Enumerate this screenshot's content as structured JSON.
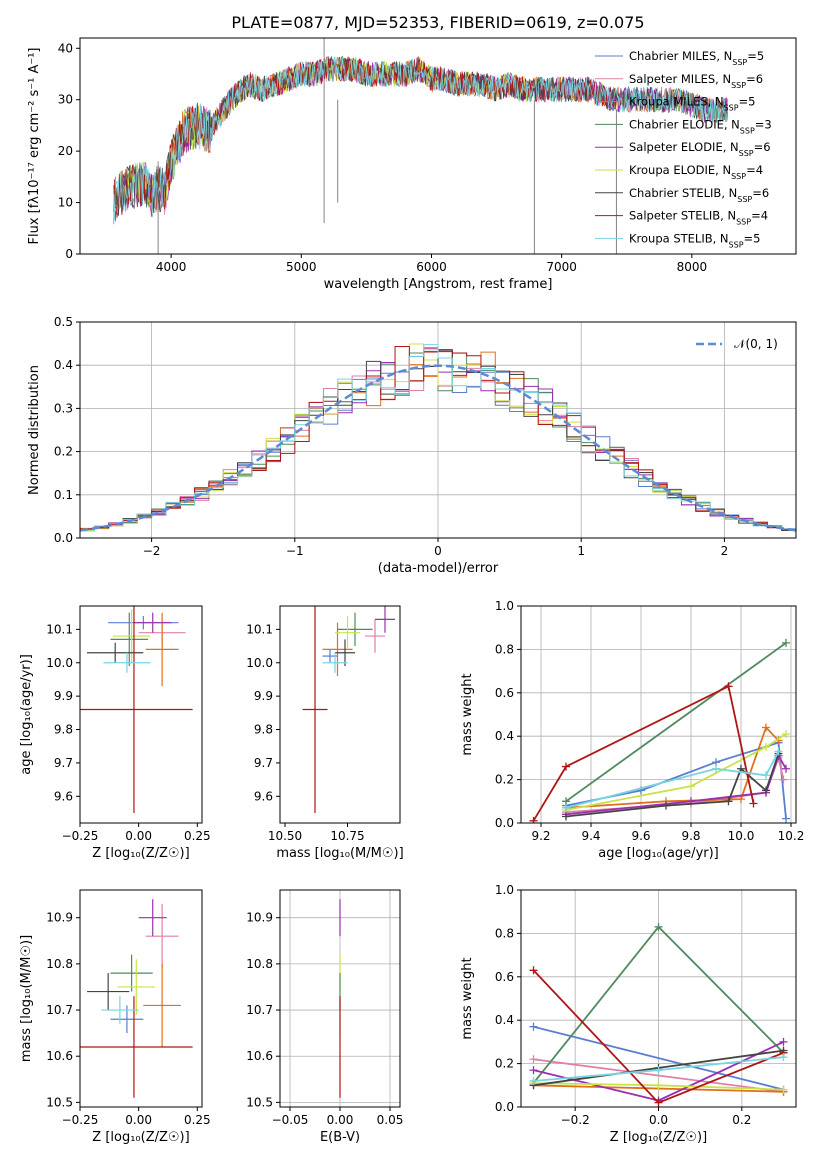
{
  "figure_title": "PLATE=0877, MJD=52353, FIBERID=0619, z=0.075",
  "models": [
    {
      "name": "Chabrier MILES",
      "n_ssp": "5",
      "color": "#5b7fcf"
    },
    {
      "name": "Salpeter MILES",
      "n_ssp": "6",
      "color": "#e07fa8"
    },
    {
      "name": "Kroupa MILES",
      "n_ssp": "5",
      "color": "#e0711c"
    },
    {
      "name": "Chabrier ELODIE",
      "n_ssp": "3",
      "color": "#4f8a5e"
    },
    {
      "name": "Salpeter ELODIE",
      "n_ssp": "6",
      "color": "#9b2fb0"
    },
    {
      "name": "Kroupa ELODIE",
      "n_ssp": "4",
      "color": "#c8e34a"
    },
    {
      "name": "Chabrier STELIB",
      "n_ssp": "6",
      "color": "#444444"
    },
    {
      "name": "Salpeter STELIB",
      "n_ssp": "4",
      "color": "#b01515"
    },
    {
      "name": "Kroupa STELIB",
      "n_ssp": "5",
      "color": "#77d4e0"
    }
  ],
  "chart_data": [
    {
      "id": "spectrum",
      "type": "line",
      "xlabel": "wavelength [Angstrom, rest frame]",
      "ylabel": "Flux [fλ10⁻¹⁷ erg cm⁻² s⁻¹ A⁻¹]",
      "xlim": [
        3300,
        8800
      ],
      "ylim": [
        0,
        42
      ],
      "xticks": [
        4000,
        5000,
        6000,
        7000,
        8000
      ],
      "yticks": [
        0,
        10,
        20,
        30,
        40
      ],
      "x": [
        3550,
        3620,
        3700,
        3800,
        3850,
        3900,
        3950,
        4000,
        4100,
        4200,
        4300,
        4400,
        4500,
        4600,
        4700,
        4800,
        4900,
        5000,
        5100,
        5200,
        5300,
        5400,
        5500,
        5600,
        5700,
        5800,
        5900,
        6000,
        6100,
        6200,
        6300,
        6400,
        6500,
        6600,
        6700,
        6800,
        6900,
        7000,
        7100,
        7200,
        7300,
        7400,
        7500,
        7600,
        7700,
        7800,
        7900,
        8000,
        8100,
        8200,
        8300
      ],
      "y": [
        10,
        12,
        13,
        14,
        11,
        13,
        12,
        18,
        24,
        25,
        24,
        28,
        31,
        33,
        32,
        33,
        34,
        35,
        35,
        36,
        36,
        36,
        35,
        35,
        35,
        35,
        36,
        34,
        34,
        33,
        33,
        33,
        32,
        33,
        32,
        32,
        32,
        32,
        32,
        32,
        31,
        30,
        30,
        30,
        30,
        30,
        30,
        29,
        28,
        28,
        28
      ]
    },
    {
      "id": "residuals",
      "type": "line",
      "xlabel": "(data-model)/error",
      "ylabel": "Normed distribution",
      "xlim": [
        -2.5,
        2.5
      ],
      "ylim": [
        0,
        0.5
      ],
      "xticks": [
        -2,
        -1,
        0,
        1,
        2
      ],
      "yticks": [
        0.0,
        0.1,
        0.2,
        0.3,
        0.4,
        0.5
      ],
      "legend": "𝒩(0, 1)",
      "gaussian_mu": 0,
      "gaussian_sigma": 1
    },
    {
      "id": "age_vs_Z",
      "type": "scatter",
      "xlabel": "Z [log₁₀(Z/Z☉)]",
      "ylabel": "age  [log₁₀(age/yr)]",
      "xlim": [
        -0.25,
        0.27
      ],
      "ylim": [
        9.52,
        10.17
      ],
      "xticks": [
        -0.25,
        0.0,
        0.25
      ],
      "yticks": [
        9.6,
        9.7,
        9.8,
        9.9,
        10.0,
        10.1
      ],
      "points": [
        {
          "model": 0,
          "x": 0.02,
          "y": 10.12,
          "xerr": 0.15,
          "yerr": 0.02
        },
        {
          "model": 1,
          "x": 0.1,
          "y": 10.09,
          "xerr": 0.1,
          "yerr": 0.04
        },
        {
          "model": 2,
          "x": 0.1,
          "y": 10.04,
          "xerr": 0.07,
          "yerr": 0.11
        },
        {
          "model": 3,
          "x": -0.04,
          "y": 10.07,
          "xerr": 0.08,
          "yerr": 0.08
        },
        {
          "model": 4,
          "x": 0.06,
          "y": 10.12,
          "xerr": 0.08,
          "yerr": 0.03
        },
        {
          "model": 5,
          "x": -0.03,
          "y": 10.08,
          "xerr": 0.08,
          "yerr": 0.08
        },
        {
          "model": 6,
          "x": -0.1,
          "y": 10.03,
          "xerr": 0.12,
          "yerr": 0.03
        },
        {
          "model": 7,
          "x": -0.02,
          "y": 9.86,
          "xerr": 0.25,
          "yerr": 0.31
        },
        {
          "model": 8,
          "x": -0.05,
          "y": 10.0,
          "xerr": 0.1,
          "yerr": 0.03
        }
      ]
    },
    {
      "id": "age_vs_mass",
      "type": "scatter",
      "xlabel": "mass [log₁₀(M/M☉)]",
      "ylabel": "",
      "xlim": [
        10.48,
        10.96
      ],
      "ylim": [
        9.52,
        10.17
      ],
      "xticks": [
        10.5,
        10.75
      ],
      "yticks": [
        9.6,
        9.7,
        9.8,
        9.9,
        10.0,
        10.1
      ],
      "points": [
        {
          "model": 0,
          "x": 10.68,
          "y": 10.02,
          "xerr": 0.03,
          "yerr": 0.02
        },
        {
          "model": 1,
          "x": 10.86,
          "y": 10.08,
          "xerr": 0.04,
          "yerr": 0.05
        },
        {
          "model": 2,
          "x": 10.71,
          "y": 10.04,
          "xerr": 0.06,
          "yerr": 0.08
        },
        {
          "model": 3,
          "x": 10.78,
          "y": 10.1,
          "xerr": 0.07,
          "yerr": 0.05
        },
        {
          "model": 4,
          "x": 10.9,
          "y": 10.13,
          "xerr": 0.04,
          "yerr": 0.04
        },
        {
          "model": 5,
          "x": 10.75,
          "y": 10.09,
          "xerr": 0.05,
          "yerr": 0.05
        },
        {
          "model": 6,
          "x": 10.74,
          "y": 10.03,
          "xerr": 0.04,
          "yerr": 0.04
        },
        {
          "model": 7,
          "x": 10.62,
          "y": 9.86,
          "xerr": 0.05,
          "yerr": 0.31
        },
        {
          "model": 8,
          "x": 10.7,
          "y": 10.0,
          "xerr": 0.05,
          "yerr": 0.03
        }
      ]
    },
    {
      "id": "weight_vs_age",
      "type": "line",
      "xlabel": "age  [log₁₀(age/yr)]",
      "ylabel": "mass weight",
      "xlim": [
        9.12,
        10.22
      ],
      "ylim": [
        0,
        1
      ],
      "xticks": [
        9.2,
        9.4,
        9.6,
        9.8,
        10.0,
        10.2
      ],
      "yticks": [
        0.0,
        0.2,
        0.4,
        0.6,
        0.8,
        1.0
      ],
      "series": [
        {
          "model": 0,
          "x": [
            9.3,
            9.6,
            9.9,
            10.15,
            10.18
          ],
          "y": [
            0.08,
            0.15,
            0.28,
            0.37,
            0.02
          ]
        },
        {
          "model": 1,
          "x": [
            9.3,
            9.8,
            10.1,
            10.15,
            10.17
          ],
          "y": [
            0.05,
            0.09,
            0.14,
            0.3,
            0.2
          ]
        },
        {
          "model": 2,
          "x": [
            9.3,
            9.7,
            10.0,
            10.1,
            10.15
          ],
          "y": [
            0.07,
            0.1,
            0.11,
            0.44,
            0.38
          ]
        },
        {
          "model": 3,
          "x": [
            9.3,
            10.18
          ],
          "y": [
            0.1,
            0.83
          ]
        },
        {
          "model": 4,
          "x": [
            9.3,
            9.8,
            10.1,
            10.15,
            10.18
          ],
          "y": [
            0.04,
            0.1,
            0.14,
            0.31,
            0.25
          ]
        },
        {
          "model": 5,
          "x": [
            9.3,
            9.8,
            10.1,
            10.18
          ],
          "y": [
            0.06,
            0.17,
            0.35,
            0.41
          ]
        },
        {
          "model": 6,
          "x": [
            9.3,
            9.7,
            9.95,
            10.0,
            10.1,
            10.15
          ],
          "y": [
            0.03,
            0.08,
            0.1,
            0.25,
            0.15,
            0.32
          ]
        },
        {
          "model": 7,
          "x": [
            9.17,
            9.3,
            9.95,
            10.05
          ],
          "y": [
            0.01,
            0.26,
            0.63,
            0.09
          ]
        },
        {
          "model": 8,
          "x": [
            9.3,
            9.9,
            10.1,
            10.15
          ],
          "y": [
            0.07,
            0.25,
            0.22,
            0.33
          ]
        }
      ]
    },
    {
      "id": "mass_vs_Z",
      "type": "scatter",
      "xlabel": "Z [log₁₀(Z/Z☉)]",
      "ylabel": "mass [log₁₀(M/M☉)]",
      "xlim": [
        -0.25,
        0.27
      ],
      "ylim": [
        10.49,
        10.96
      ],
      "xticks": [
        -0.25,
        0.0,
        0.25
      ],
      "yticks": [
        10.5,
        10.6,
        10.7,
        10.8,
        10.9
      ],
      "points": [
        {
          "model": 0,
          "x": -0.05,
          "y": 10.68,
          "xerr": 0.07,
          "yerr": 0.03
        },
        {
          "model": 1,
          "x": 0.1,
          "y": 10.86,
          "xerr": 0.07,
          "yerr": 0.07
        },
        {
          "model": 2,
          "x": 0.1,
          "y": 10.71,
          "xerr": 0.08,
          "yerr": 0.09
        },
        {
          "model": 3,
          "x": -0.03,
          "y": 10.78,
          "xerr": 0.09,
          "yerr": 0.04
        },
        {
          "model": 4,
          "x": 0.06,
          "y": 10.9,
          "xerr": 0.06,
          "yerr": 0.04
        },
        {
          "model": 5,
          "x": -0.01,
          "y": 10.75,
          "xerr": 0.08,
          "yerr": 0.06
        },
        {
          "model": 6,
          "x": -0.13,
          "y": 10.74,
          "xerr": 0.09,
          "yerr": 0.04
        },
        {
          "model": 7,
          "x": -0.02,
          "y": 10.62,
          "xerr": 0.25,
          "yerr": 0.11
        },
        {
          "model": 8,
          "x": -0.08,
          "y": 10.7,
          "xerr": 0.08,
          "yerr": 0.03
        }
      ]
    },
    {
      "id": "mass_vs_EBV",
      "type": "scatter",
      "xlabel": "E(B-V)",
      "ylabel": "",
      "xlim": [
        -0.06,
        0.06
      ],
      "ylim": [
        10.49,
        10.96
      ],
      "xticks": [
        -0.05,
        0.0,
        0.05
      ],
      "yticks": [
        10.5,
        10.6,
        10.7,
        10.8,
        10.9
      ],
      "points": [
        {
          "model": 4,
          "x": 0,
          "y": 10.9,
          "xerr": 0,
          "yerr": 0.04
        },
        {
          "model": 5,
          "x": 0,
          "y": 10.78,
          "xerr": 0,
          "yerr": 0.04
        },
        {
          "model": 3,
          "x": 0,
          "y": 10.74,
          "xerr": 0,
          "yerr": 0.04
        },
        {
          "model": 8,
          "x": 0,
          "y": 10.68,
          "xerr": 0,
          "yerr": 0.04
        },
        {
          "model": 7,
          "x": 0,
          "y": 10.62,
          "xerr": 0,
          "yerr": 0.11
        }
      ]
    },
    {
      "id": "weight_vs_Z",
      "type": "line",
      "xlabel": "Z [log₁₀(Z/Z☉)]",
      "ylabel": "mass weight",
      "xlim": [
        -0.33,
        0.33
      ],
      "ylim": [
        0,
        1
      ],
      "xticks": [
        -0.2,
        0.0,
        0.2
      ],
      "yticks": [
        0.0,
        0.2,
        0.4,
        0.6,
        0.8,
        1.0
      ],
      "series": [
        {
          "model": 0,
          "x": [
            -0.3,
            0.3
          ],
          "y": [
            0.37,
            0.08
          ]
        },
        {
          "model": 1,
          "x": [
            -0.3,
            0.3
          ],
          "y": [
            0.22,
            0.07
          ]
        },
        {
          "model": 2,
          "x": [
            -0.3,
            0.3
          ],
          "y": [
            0.1,
            0.07
          ]
        },
        {
          "model": 3,
          "x": [
            -0.3,
            0.0,
            0.3
          ],
          "y": [
            0.11,
            0.83,
            0.25
          ]
        },
        {
          "model": 4,
          "x": [
            -0.3,
            0.0,
            0.3
          ],
          "y": [
            0.17,
            0.03,
            0.3
          ]
        },
        {
          "model": 5,
          "x": [
            -0.3,
            0.0,
            0.3
          ],
          "y": [
            0.11,
            0.1,
            0.08
          ]
        },
        {
          "model": 6,
          "x": [
            -0.3,
            0.0,
            0.3
          ],
          "y": [
            0.1,
            0.18,
            0.26
          ]
        },
        {
          "model": 7,
          "x": [
            -0.3,
            0.0,
            0.3
          ],
          "y": [
            0.63,
            0.02,
            0.25
          ]
        },
        {
          "model": 8,
          "x": [
            -0.3,
            0.0,
            0.3
          ],
          "y": [
            0.12,
            0.17,
            0.23
          ]
        }
      ]
    }
  ]
}
